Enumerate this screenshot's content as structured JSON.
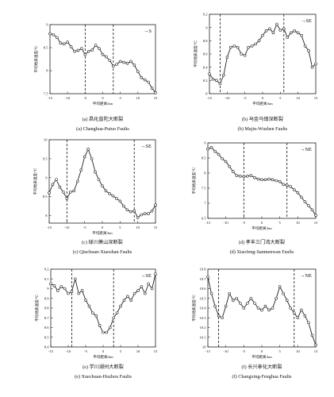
{
  "chart_data": [
    {
      "type": "line",
      "panel_label": "(a)",
      "caption_cn": "(a)  昌化普陀大断裂",
      "caption_en": "(a) Changhua-Putuo Faults",
      "xlabel": "平均距离/km",
      "ylabel": "平均地表温度/℃",
      "direction": "→S",
      "xlim": [
        -15,
        15
      ],
      "ylim": [
        7.5,
        9.0
      ],
      "xticks": [
        -15,
        -10,
        -5,
        0,
        5,
        10,
        15
      ],
      "yticks": [
        7.5,
        8.0,
        8.5,
        9.0
      ],
      "ytick_labels": [
        "7.5",
        "8",
        "8.5",
        "9"
      ],
      "fault_lines": [
        -5,
        3
      ],
      "x": [
        -15,
        -14,
        -13,
        -12,
        -11,
        -10,
        -9,
        -8,
        -7,
        -6,
        -5,
        -4,
        -3,
        -2,
        -1,
        0,
        1,
        2,
        3,
        4,
        5,
        6,
        7,
        8,
        9,
        10,
        11,
        12,
        13,
        14,
        15
      ],
      "y": [
        8.8,
        8.78,
        8.72,
        8.6,
        8.58,
        8.62,
        8.52,
        8.42,
        8.44,
        8.48,
        8.35,
        8.42,
        8.45,
        8.55,
        8.48,
        8.35,
        8.3,
        8.22,
        8.1,
        8.14,
        8.2,
        8.18,
        8.16,
        8.2,
        8.12,
        7.98,
        7.85,
        7.8,
        7.75,
        7.62,
        7.52
      ]
    },
    {
      "type": "line",
      "panel_label": "(b)",
      "caption_cn": "(b)  马金乌镇深断裂",
      "caption_en": "(b) Majin-Wuzhen Faults",
      "xlabel": "平均距离/km",
      "ylabel": "平均地表温度/℃",
      "direction": "→SE",
      "xlim": [
        -15,
        15
      ],
      "ylim": [
        8.0,
        9.2
      ],
      "xticks": [
        -15,
        -10,
        -5,
        0,
        5,
        10,
        15
      ],
      "yticks": [
        8.0,
        8.2,
        8.4,
        8.6,
        8.8,
        9.0,
        9.2
      ],
      "ytick_labels": [
        "8",
        "8.2",
        "8.4",
        "8.6",
        "8.8",
        "9",
        "9.2"
      ],
      "fault_lines": [
        -12,
        6
      ],
      "x": [
        -15,
        -14,
        -13,
        -12,
        -11,
        -10,
        -9,
        -8,
        -7,
        -6,
        -5,
        -4,
        -3,
        -2,
        -1,
        0,
        1,
        2,
        3,
        4,
        5,
        6,
        7,
        8,
        9,
        10,
        11,
        12,
        13,
        14,
        15
      ],
      "y": [
        8.3,
        8.22,
        8.2,
        8.15,
        8.28,
        8.55,
        8.7,
        8.72,
        8.7,
        8.6,
        8.58,
        8.7,
        8.72,
        8.75,
        8.8,
        8.88,
        8.95,
        8.98,
        8.92,
        9.05,
        8.96,
        8.98,
        8.85,
        8.92,
        8.95,
        8.92,
        8.88,
        8.72,
        8.65,
        8.4,
        8.45
      ]
    },
    {
      "type": "line",
      "panel_label": "(c)",
      "caption_cn": "(c)  球川萧山深断裂",
      "caption_en": "(c) Qiuchuan-Xiaoshan Faults",
      "xlabel": "平均距离/km",
      "ylabel": "平均地表温度/℃",
      "direction": "→SE",
      "xlim": [
        -15,
        15
      ],
      "ylim": [
        7.8,
        10.0
      ],
      "xticks": [
        -15,
        -10,
        -5,
        0,
        5,
        10,
        15
      ],
      "yticks": [
        8.0,
        8.5,
        9.0,
        9.5,
        10.0
      ],
      "ytick_labels": [
        "8",
        "8.5",
        "9",
        "9.5",
        "10"
      ],
      "fault_lines": [
        -10,
        9
      ],
      "x": [
        -15,
        -14,
        -13,
        -12,
        -11,
        -10,
        -9,
        -8,
        -7,
        -6,
        -5,
        -4,
        -3,
        -2,
        -1,
        0,
        1,
        2,
        3,
        4,
        5,
        6,
        7,
        8,
        9,
        10,
        11,
        12,
        13,
        14,
        15
      ],
      "y": [
        8.6,
        8.82,
        8.95,
        8.75,
        8.62,
        8.45,
        8.62,
        8.65,
        8.9,
        9.2,
        9.55,
        9.75,
        9.5,
        9.15,
        8.95,
        8.78,
        8.65,
        8.58,
        8.52,
        8.45,
        8.38,
        8.25,
        8.15,
        8.1,
        8.12,
        7.95,
        8.02,
        8.05,
        8.05,
        8.12,
        8.28
      ]
    },
    {
      "type": "line",
      "panel_label": "(d)",
      "caption_cn": "(d)  孝丰三门湾大断裂",
      "caption_en": "(d) Xiaofeng-Sanmenwan Faults",
      "xlabel": "平均距离/km",
      "ylabel": "平均地表温度/℃",
      "direction": "→NE",
      "xlim": [
        -15,
        15
      ],
      "ylim": [
        6.5,
        9.0
      ],
      "xticks": [
        -15,
        -10,
        -5,
        0,
        5,
        10,
        15
      ],
      "yticks": [
        6.5,
        7.0,
        7.5,
        8.0,
        8.5,
        9.0
      ],
      "ytick_labels": [
        "6.5",
        "7",
        "7.5",
        "8",
        "8.5",
        "9"
      ],
      "fault_lines": [
        -5,
        7
      ],
      "x": [
        -15,
        -14,
        -13,
        -12,
        -11,
        -10,
        -9,
        -8,
        -7,
        -6,
        -5,
        -4,
        -3,
        -2,
        -1,
        0,
        1,
        2,
        3,
        4,
        5,
        6,
        7,
        8,
        9,
        10,
        11,
        12,
        13,
        14,
        15
      ],
      "y": [
        8.8,
        8.85,
        8.72,
        8.62,
        8.48,
        8.38,
        8.22,
        8.05,
        7.92,
        7.9,
        7.88,
        7.9,
        7.92,
        7.85,
        7.8,
        7.78,
        7.78,
        7.8,
        7.78,
        7.75,
        7.72,
        7.62,
        7.6,
        7.55,
        7.45,
        7.35,
        7.2,
        7.05,
        6.92,
        6.78,
        6.6
      ]
    },
    {
      "type": "line",
      "panel_label": "(e)",
      "caption_cn": "(e)  学川湖州大断裂",
      "caption_en": "(e) Xuechuan-Huzhou Faults",
      "xlabel": "平均距离/km",
      "ylabel": "平均地表温度/℃",
      "direction": "→SE",
      "xlim": [
        -15,
        15
      ],
      "ylim": [
        8.4,
        9.2
      ],
      "xticks": [
        -15,
        -10,
        -5,
        0,
        5,
        10,
        15
      ],
      "yticks": [
        8.4,
        8.5,
        8.6,
        8.7,
        8.8,
        8.9,
        9.0,
        9.1,
        9.2
      ],
      "ytick_labels": [
        "8.4",
        "8.5",
        "8.6",
        "8.7",
        "8.8",
        "8.9",
        "9",
        "9.1",
        "9.2"
      ],
      "fault_lines": [
        -9,
        3
      ],
      "x": [
        -15,
        -14,
        -13,
        -12,
        -11,
        -10,
        -9,
        -8,
        -7,
        -6,
        -5,
        -4,
        -3,
        -2,
        -1,
        0,
        1,
        2,
        3,
        4,
        5,
        6,
        7,
        8,
        9,
        10,
        11,
        12,
        13,
        14,
        15
      ],
      "y": [
        9.05,
        9.03,
        8.98,
        9.02,
        9.0,
        8.95,
        8.97,
        9.1,
        8.95,
        8.98,
        8.88,
        8.82,
        8.75,
        8.72,
        8.62,
        8.55,
        8.55,
        8.6,
        8.7,
        8.75,
        8.82,
        8.88,
        8.92,
        8.88,
        8.95,
        8.98,
        9.02,
        8.95,
        9.05,
        9.0,
        9.15
      ]
    },
    {
      "type": "line",
      "panel_label": "(f)",
      "caption_cn": "(f)  长兴奉化大断裂",
      "caption_en": "(f) Changxing-Fenghua Faults",
      "xlabel": "平均距离/km",
      "ylabel": "平均地表温度/℃",
      "direction": "→NE",
      "xlim": [
        -15,
        15
      ],
      "ylim": [
        10.0,
        10.8
      ],
      "xticks": [
        -15,
        -10,
        -5,
        0,
        5,
        10,
        15
      ],
      "yticks": [
        10.0,
        10.1,
        10.2,
        10.3,
        10.4,
        10.5,
        10.6,
        10.7,
        10.8
      ],
      "ytick_labels": [
        "10",
        "10.1",
        "10.2",
        "10.3",
        "10.4",
        "10.5",
        "10.6",
        "10.7",
        "10.8"
      ],
      "fault_lines": [
        -12,
        9
      ],
      "x": [
        -15,
        -14,
        -13,
        -12,
        -11,
        -10,
        -9,
        -8,
        -7,
        -6,
        -5,
        -4,
        -3,
        -2,
        -1,
        0,
        1,
        2,
        3,
        4,
        5,
        6,
        7,
        8,
        9,
        10,
        11,
        12,
        13,
        14,
        15
      ],
      "y": [
        10.72,
        10.55,
        10.42,
        10.32,
        10.3,
        10.42,
        10.55,
        10.48,
        10.5,
        10.45,
        10.4,
        10.45,
        10.5,
        10.45,
        10.4,
        10.38,
        10.42,
        10.38,
        10.4,
        10.5,
        10.62,
        10.55,
        10.48,
        10.4,
        10.35,
        10.3,
        10.38,
        10.32,
        10.25,
        10.12,
        10.02
      ]
    }
  ]
}
